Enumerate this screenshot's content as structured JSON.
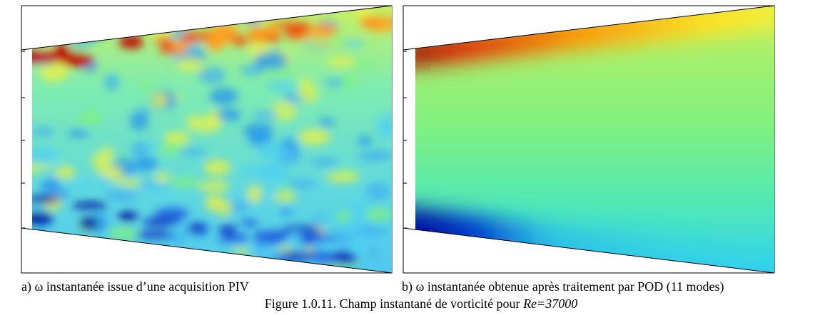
{
  "panels": [
    {
      "caption": "a) ω instantanée issue d’une acquisition PIV"
    },
    {
      "caption": "b) ω instantanée obtenue après traitement par POD (11 modes)"
    }
  ],
  "figure_caption": {
    "text": "Figure 1.0.11. Champ instantané de vorticité pour ",
    "emphasis": "Re=37000"
  }
}
